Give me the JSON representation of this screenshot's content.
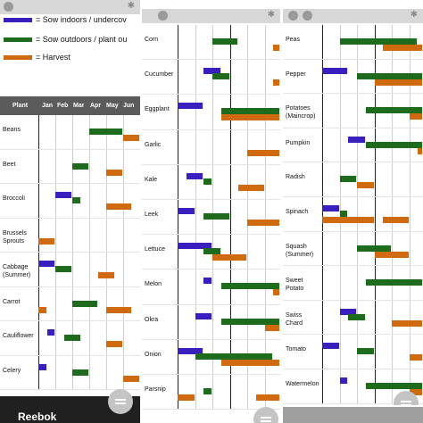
{
  "colors": {
    "sow_indoors": "#3a1fbf",
    "sow_outdoors": "#1e6b1e",
    "harvest": "#d06a10"
  },
  "legend": [
    {
      "label": "= Sow indoors / undercov",
      "color": "#3a1fbf"
    },
    {
      "label": "= Sow outdoors / plant ou",
      "color": "#1e6b1e"
    },
    {
      "label": "= Harvest",
      "color": "#d06a10"
    }
  ],
  "icons": {
    "status_left": "app-icon",
    "status_right": "bluetooth-icon",
    "menu": "menu-icon"
  },
  "table_header": {
    "plant": "Plant",
    "months": [
      "Jan",
      "Feb",
      "Mar",
      "Apr",
      "May",
      "Jun"
    ]
  },
  "ad_banner": {
    "text": "Reebok"
  },
  "panel1": {
    "plants": [
      {
        "name": "Beans",
        "bars": [
          [
            3,
            2,
            "o"
          ],
          [
            5,
            2,
            "h"
          ]
        ]
      },
      {
        "name": "Beet",
        "bars": [
          [
            2,
            1,
            "o"
          ],
          [
            4,
            1,
            "h"
          ]
        ]
      },
      {
        "name": "Broccoli",
        "bars": [
          [
            1,
            1,
            "i"
          ],
          [
            2,
            0.5,
            "o"
          ],
          [
            4,
            1.5,
            "h"
          ]
        ]
      },
      {
        "name": "Brussels Sprouts",
        "bars": [
          [
            0,
            1,
            "h"
          ]
        ]
      },
      {
        "name": "Cabbage (Summer)",
        "bars": [
          [
            0,
            1,
            "i"
          ],
          [
            1,
            1,
            "o"
          ],
          [
            3.5,
            1,
            "h"
          ]
        ]
      },
      {
        "name": "Carrot",
        "bars": [
          [
            0,
            0.5,
            "h"
          ],
          [
            2,
            1.5,
            "o"
          ],
          [
            4,
            1.5,
            "h"
          ]
        ]
      },
      {
        "name": "Cauliflower",
        "bars": [
          [
            0.5,
            0.5,
            "i"
          ],
          [
            1.5,
            1,
            "o"
          ],
          [
            4,
            1,
            "h"
          ]
        ]
      },
      {
        "name": "Celery",
        "bars": [
          [
            0,
            0.5,
            "i"
          ],
          [
            2,
            1,
            "o"
          ],
          [
            5,
            1,
            "h"
          ]
        ]
      }
    ]
  },
  "panel2": {
    "plants": [
      {
        "name": "Corn",
        "bars": [
          [
            2,
            1.5,
            "o"
          ],
          [
            5.5,
            1.5,
            "h"
          ]
        ]
      },
      {
        "name": "Cucumber",
        "bars": [
          [
            1.5,
            1,
            "i"
          ],
          [
            2,
            1,
            "o"
          ],
          [
            5.5,
            1,
            "h"
          ]
        ]
      },
      {
        "name": "Eggplant",
        "bars": [
          [
            0,
            1.5,
            "i"
          ],
          [
            2.5,
            3.5,
            "o"
          ],
          [
            2.5,
            3.5,
            "h"
          ]
        ]
      },
      {
        "name": "Garlic",
        "bars": [
          [
            4,
            2,
            "h"
          ]
        ]
      },
      {
        "name": "Kale",
        "bars": [
          [
            0.5,
            1,
            "i"
          ],
          [
            1.5,
            0.5,
            "o"
          ],
          [
            3.5,
            1.5,
            "h"
          ]
        ]
      },
      {
        "name": "Leek",
        "bars": [
          [
            0,
            1,
            "i"
          ],
          [
            1.5,
            1.5,
            "o"
          ],
          [
            4,
            2,
            "h"
          ]
        ]
      },
      {
        "name": "Lettuce",
        "bars": [
          [
            0,
            2,
            "i"
          ],
          [
            1.5,
            1,
            "o"
          ],
          [
            2,
            2,
            "h"
          ]
        ]
      },
      {
        "name": "Melon",
        "bars": [
          [
            1.5,
            0.5,
            "i"
          ],
          [
            2.5,
            3.5,
            "o"
          ],
          [
            5.5,
            1,
            "h"
          ]
        ]
      },
      {
        "name": "Okra",
        "bars": [
          [
            1,
            1,
            "i"
          ],
          [
            2.5,
            3.5,
            "o"
          ],
          [
            5,
            1.5,
            "h"
          ]
        ]
      },
      {
        "name": "Onion",
        "bars": [
          [
            0,
            1.5,
            "i"
          ],
          [
            1,
            4.5,
            "o"
          ],
          [
            2.5,
            3.5,
            "h"
          ]
        ]
      },
      {
        "name": "Parsnip",
        "bars": [
          [
            1.5,
            0.5,
            "o"
          ],
          [
            0,
            1,
            "h"
          ],
          [
            4.5,
            1.5,
            "h"
          ]
        ]
      }
    ]
  },
  "panel3": {
    "plants": [
      {
        "name": "Peas",
        "bars": [
          [
            1,
            4.5,
            "o"
          ],
          [
            3.5,
            2.5,
            "h"
          ]
        ]
      },
      {
        "name": "Pepper",
        "bars": [
          [
            0,
            1.5,
            "i"
          ],
          [
            2,
            4,
            "o"
          ],
          [
            3,
            3,
            "h"
          ]
        ]
      },
      {
        "name": "Potatoes (Maincrop)",
        "bars": [
          [
            2.5,
            3.5,
            "o"
          ],
          [
            5,
            1,
            "h"
          ]
        ]
      },
      {
        "name": "Pumpkin",
        "bars": [
          [
            1.5,
            1,
            "i"
          ],
          [
            2.5,
            3.5,
            "o"
          ],
          [
            5.5,
            0.5,
            "h"
          ]
        ]
      },
      {
        "name": "Radish",
        "bars": [
          [
            1,
            1,
            "o"
          ],
          [
            2,
            1,
            "h"
          ]
        ]
      },
      {
        "name": "Spinach",
        "bars": [
          [
            0,
            1,
            "i"
          ],
          [
            1,
            0.5,
            "o"
          ],
          [
            0,
            3,
            "h"
          ],
          [
            3.5,
            1.5,
            "h"
          ]
        ]
      },
      {
        "name": "Squash (Summer)",
        "bars": [
          [
            2,
            2,
            "o"
          ],
          [
            3,
            2,
            "h"
          ]
        ]
      },
      {
        "name": "Sweet Potato",
        "bars": [
          [
            2.5,
            3.5,
            "o"
          ]
        ]
      },
      {
        "name": "Swiss Chard",
        "bars": [
          [
            1,
            1,
            "i"
          ],
          [
            1.5,
            1,
            "o"
          ],
          [
            4,
            2,
            "h"
          ]
        ]
      },
      {
        "name": "Tomato",
        "bars": [
          [
            0,
            1,
            "i"
          ],
          [
            2,
            1,
            "o"
          ],
          [
            5,
            1.5,
            "h"
          ]
        ]
      },
      {
        "name": "Watermelon",
        "bars": [
          [
            1,
            0.5,
            "i"
          ],
          [
            2.5,
            3.5,
            "o"
          ],
          [
            5,
            1.5,
            "h"
          ]
        ]
      }
    ]
  }
}
